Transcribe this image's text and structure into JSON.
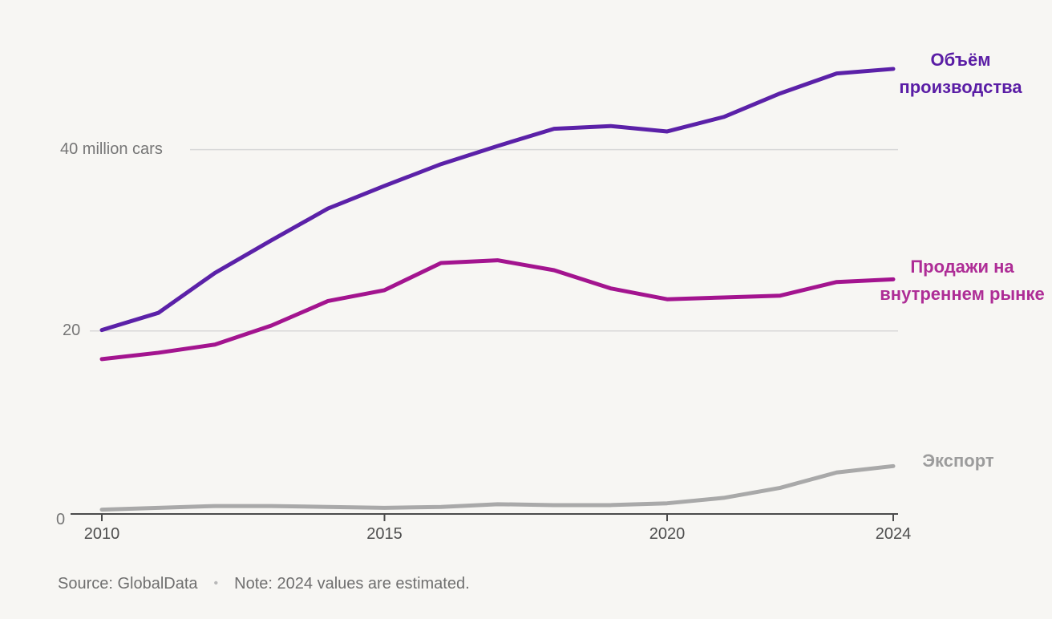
{
  "chart_data": {
    "type": "line",
    "title": "",
    "x": [
      2010,
      2011,
      2012,
      2013,
      2014,
      2015,
      2016,
      2017,
      2018,
      2019,
      2020,
      2021,
      2022,
      2023,
      2024
    ],
    "x_ticks": [
      {
        "value": 2010,
        "label": "2010"
      },
      {
        "value": 2015,
        "label": "2015"
      },
      {
        "value": 2020,
        "label": "2020"
      },
      {
        "value": 2024,
        "label": "2024"
      }
    ],
    "y_ticks": [
      {
        "value": 40,
        "label": "40 million cars"
      },
      {
        "value": 20,
        "label": "20"
      },
      {
        "value": 0,
        "label": "0"
      }
    ],
    "xlim": [
      2010,
      2024
    ],
    "ylim": [
      0,
      50
    ],
    "ylabel": "million cars",
    "grid": "horizontal",
    "legend_position": "right-of-lines",
    "series": [
      {
        "key": "production",
        "name": "Объём производства",
        "label_lines": [
          "Объём",
          "производства"
        ],
        "color": "#5b21a8",
        "label_color": "#5a1da5",
        "values": [
          20.1,
          22.0,
          26.4,
          30.0,
          33.5,
          36.0,
          38.4,
          40.4,
          42.3,
          42.6,
          42.0,
          43.6,
          46.2,
          48.4,
          48.9
        ]
      },
      {
        "key": "domestic_sales",
        "name": "Продажи на внутреннем рынке",
        "label_lines": [
          "Продажи на",
          "внутреннем рынке"
        ],
        "color": "#a3148f",
        "label_color": "#ae2d96",
        "values": [
          16.9,
          17.6,
          18.5,
          20.6,
          23.3,
          24.5,
          27.5,
          27.8,
          26.7,
          24.7,
          23.5,
          23.7,
          23.9,
          25.4,
          25.7
        ]
      },
      {
        "key": "exports",
        "name": "Экспорт",
        "label_lines": [
          "Экспорт"
        ],
        "color": "#a9a9a9",
        "label_color": "#9c9c9c",
        "values": [
          0.3,
          0.5,
          0.7,
          0.7,
          0.6,
          0.5,
          0.6,
          0.9,
          0.8,
          0.8,
          1.0,
          1.6,
          2.7,
          4.4,
          5.1
        ]
      }
    ],
    "note": "2024 values are estimated"
  },
  "footer": {
    "source": "Source: GlobalData",
    "separator": "•",
    "note": "Note: 2024 values are estimated."
  },
  "colors": {
    "background": "#f7f6f3",
    "gridline": "#d8d8d8",
    "axis": "#4b4b4b",
    "production_line": "#5b21a8",
    "domestic_sales_line": "#a3148f",
    "exports_line": "#a9a9a9"
  }
}
